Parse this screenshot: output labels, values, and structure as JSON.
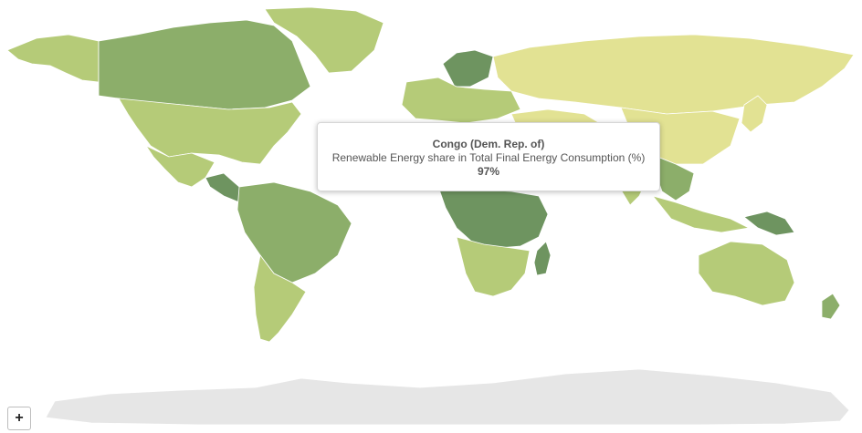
{
  "map": {
    "colors": {
      "highest": "#6e9460",
      "high": "#8cae6a",
      "mid": "#b5cb78",
      "low": "#d4df8c",
      "lowest": "#e2e293",
      "antarctica": "#e6e6e6"
    },
    "regions": [
      {
        "name": "alaska-region",
        "tone": "mid"
      },
      {
        "name": "canada-region",
        "tone": "high"
      },
      {
        "name": "greenland-region",
        "tone": "mid"
      },
      {
        "name": "usa-region",
        "tone": "mid"
      },
      {
        "name": "mexico-region",
        "tone": "mid"
      },
      {
        "name": "central-america-region",
        "tone": "highest"
      },
      {
        "name": "south-america-north-region",
        "tone": "high"
      },
      {
        "name": "south-america-south-region",
        "tone": "mid"
      },
      {
        "name": "scandinavia-region",
        "tone": "highest"
      },
      {
        "name": "europe-region",
        "tone": "mid"
      },
      {
        "name": "russia-region",
        "tone": "lowest"
      },
      {
        "name": "middle-east-region",
        "tone": "lowest"
      },
      {
        "name": "china-region",
        "tone": "lowest"
      },
      {
        "name": "india-region",
        "tone": "mid"
      },
      {
        "name": "southeast-asia-region",
        "tone": "high"
      },
      {
        "name": "indonesia-region",
        "tone": "mid"
      },
      {
        "name": "new-guinea-region",
        "tone": "highest"
      },
      {
        "name": "japan-region",
        "tone": "lowest"
      },
      {
        "name": "north-africa-region",
        "tone": "low"
      },
      {
        "name": "central-africa-region",
        "tone": "highest"
      },
      {
        "name": "southern-africa-region",
        "tone": "mid"
      },
      {
        "name": "madagascar-region",
        "tone": "highest"
      },
      {
        "name": "australia-region",
        "tone": "mid"
      },
      {
        "name": "new-zealand-region",
        "tone": "high"
      },
      {
        "name": "antarctica-region",
        "tone": "antarctica"
      }
    ]
  },
  "tooltip": {
    "country": "Congo (Dem. Rep. of)",
    "indicator": "Renewable Energy share in Total Final Energy Consumption (%)",
    "value": "97%"
  },
  "controls": {
    "zoom_in_label": "+"
  }
}
